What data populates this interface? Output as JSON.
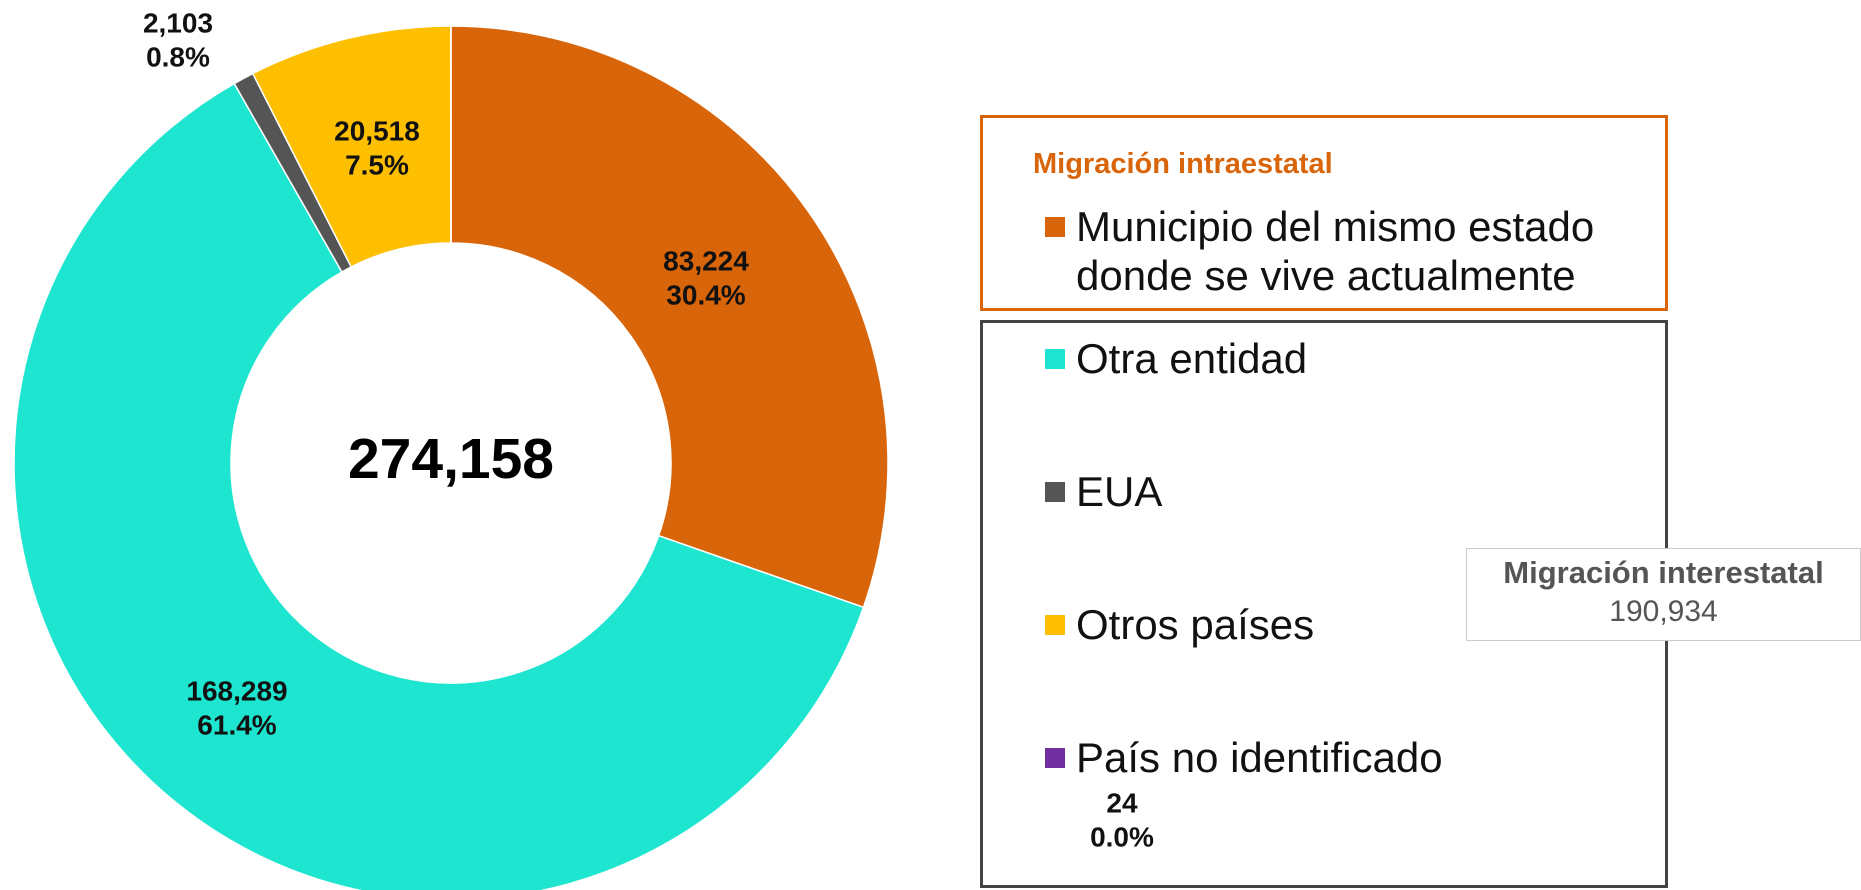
{
  "chart_data": {
    "type": "donut",
    "categories": [
      "Municipio del mismo estado donde se vive actualmente",
      "Otra entidad",
      "EUA",
      "Otros países",
      "País no identificado"
    ],
    "values": [
      83224,
      168289,
      2103,
      20518,
      24
    ],
    "value_labels": [
      "83,224",
      "168,289",
      "2,103",
      "20,518",
      "24"
    ],
    "percents": [
      30.4,
      61.4,
      0.8,
      7.5,
      0.0
    ],
    "percent_labels": [
      "30.4%",
      "61.4%",
      "0.8%",
      "7.5%",
      "0.0%"
    ],
    "colors": [
      "#d9650a",
      "#1de5cf",
      "#555555",
      "#fdbf00",
      "#7030a0"
    ],
    "total": 274158,
    "total_label": "274,158",
    "intraestatal_title": "Migración intraestatal",
    "interestatal_title": "Migración interestatal",
    "interestatal_total": 190934,
    "interestatal_total_label": "190,934"
  }
}
